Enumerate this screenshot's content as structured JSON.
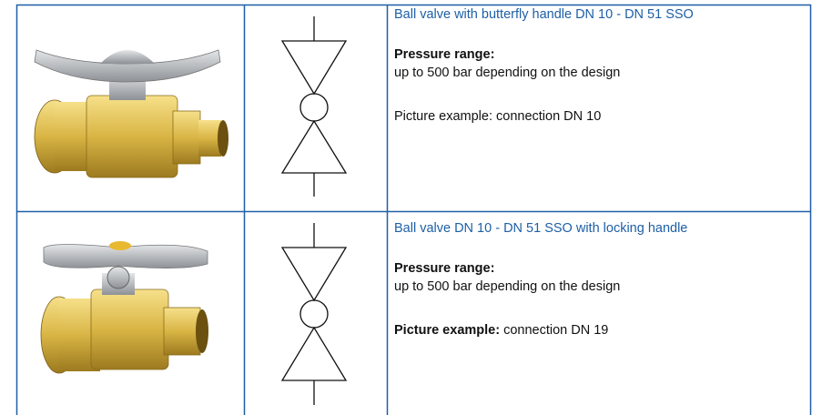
{
  "rows": [
    {
      "title": "Ball valve with butterfly handle DN 10 - DN 51 SSO",
      "pressure_label": "Pressure range:",
      "pressure_text": "up to 500 bar depending on the design",
      "example": "Picture example: connection DN 10"
    },
    {
      "title": "Ball valve DN 10 - DN 51 SSO with locking handle",
      "pressure_label": "Pressure range:",
      "pressure_text": "up to 500 bar depending on the design",
      "example_label": "Picture example:",
      "example_text": "connection DN 19"
    }
  ]
}
